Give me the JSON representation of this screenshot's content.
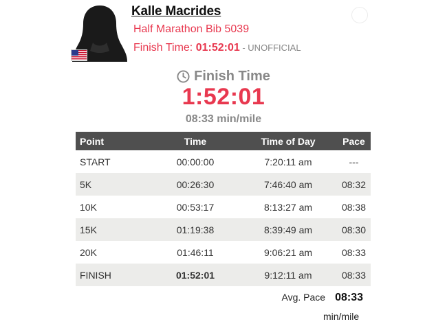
{
  "athlete": {
    "name": "Kalle Macrides",
    "race": "Half Marathon Bib 5039",
    "finish_label": "Finish Time: ",
    "finish_time": "01:52:01",
    "finish_status": " - UNOFFICIAL",
    "flag_icon": "us-flag-icon",
    "avatar_icon": "female-silhouette-icon"
  },
  "summary": {
    "title": "Finish Time",
    "time": "1:52:01",
    "pace": "08:33 min/mile"
  },
  "table": {
    "headers": [
      "Point",
      "Time",
      "Time of Day",
      "Pace"
    ],
    "rows": [
      {
        "point": "START",
        "time": "00:00:00",
        "tod": "7:20:11 am",
        "pace": "---"
      },
      {
        "point": "5K",
        "time": "00:26:30",
        "tod": "7:46:40 am",
        "pace": "08:32"
      },
      {
        "point": "10K",
        "time": "00:53:17",
        "tod": "8:13:27 am",
        "pace": "08:38"
      },
      {
        "point": "15K",
        "time": "01:19:38",
        "tod": "8:39:49 am",
        "pace": "08:30"
      },
      {
        "point": "20K",
        "time": "01:46:11",
        "tod": "9:06:21 am",
        "pace": "08:33"
      },
      {
        "point": "FINISH",
        "time": "01:52:01",
        "tod": "9:12:11 am",
        "pace": "08:33"
      }
    ]
  },
  "avg": {
    "label": "Avg. Pace",
    "value": "08:33",
    "unit": "min/mile"
  },
  "colors": {
    "accent": "#e8384f",
    "header_bg": "#4f4f4f",
    "alt_row": "#ececea"
  }
}
